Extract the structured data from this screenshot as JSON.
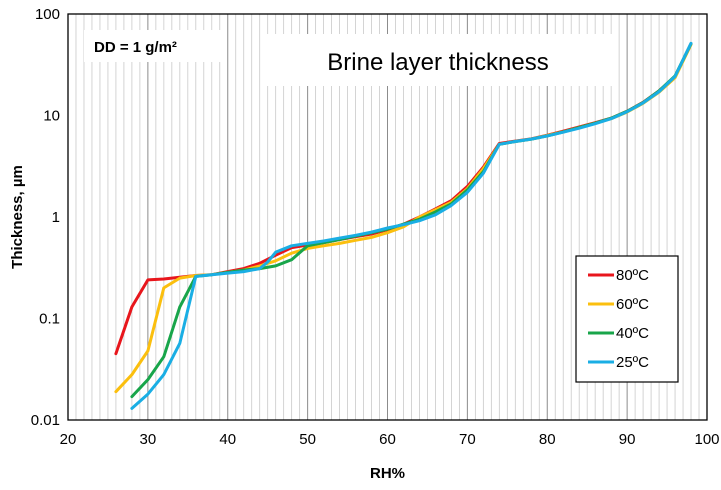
{
  "chart_data": {
    "type": "line",
    "title": "Brine layer thickness",
    "annotation": "DD = 1 g/m²",
    "xlabel": "RH%",
    "ylabel": "Thickness, µm",
    "xlim": [
      20,
      100
    ],
    "ylim": [
      0.01,
      100
    ],
    "yscale": "log",
    "x_ticks": [
      "20",
      "30",
      "40",
      "50",
      "60",
      "70",
      "80",
      "90",
      "100"
    ],
    "y_ticks": [
      "0.01",
      "0.1",
      "1",
      "10",
      "100"
    ],
    "grid": "vertical",
    "legend_position": "right",
    "series": [
      {
        "name": "80ºC",
        "color": "#e8161c",
        "x": [
          26,
          28,
          30,
          32,
          34,
          36,
          38,
          40,
          42,
          44,
          46,
          48,
          50,
          52,
          54,
          56,
          58,
          60,
          62,
          64,
          66,
          68,
          70,
          72,
          74,
          76,
          78,
          80,
          82,
          84,
          86,
          88,
          90,
          92,
          94,
          96,
          98
        ],
        "y": [
          0.045,
          0.13,
          0.24,
          0.245,
          0.255,
          0.265,
          0.27,
          0.29,
          0.31,
          0.35,
          0.42,
          0.5,
          0.53,
          0.56,
          0.6,
          0.64,
          0.68,
          0.75,
          0.85,
          1.0,
          1.2,
          1.45,
          2.0,
          3.1,
          5.3,
          5.6,
          5.9,
          6.4,
          7.0,
          7.7,
          8.5,
          9.4,
          11.0,
          13.5,
          17.5,
          24,
          51
        ]
      },
      {
        "name": "60ºC",
        "color": "#fbbf0e",
        "x": [
          26,
          28,
          30,
          32,
          34,
          36,
          38,
          40,
          42,
          44,
          46,
          48,
          50,
          52,
          54,
          56,
          58,
          60,
          62,
          64,
          66,
          68,
          70,
          72,
          74,
          76,
          78,
          80,
          82,
          84,
          86,
          88,
          90,
          92,
          94,
          96,
          98
        ],
        "y": [
          0.019,
          0.028,
          0.048,
          0.2,
          0.25,
          0.265,
          0.27,
          0.285,
          0.3,
          0.33,
          0.37,
          0.44,
          0.49,
          0.52,
          0.55,
          0.59,
          0.63,
          0.7,
          0.8,
          1.0,
          1.18,
          1.4,
          1.9,
          3.0,
          5.2,
          5.55,
          5.85,
          6.35,
          6.9,
          7.6,
          8.4,
          9.3,
          10.8,
          13.2,
          17.0,
          23.5,
          50
        ]
      },
      {
        "name": "40ºC",
        "color": "#18a54a",
        "x": [
          28,
          30,
          32,
          34,
          36,
          38,
          40,
          42,
          44,
          46,
          48,
          50,
          52,
          54,
          56,
          58,
          60,
          62,
          64,
          66,
          68,
          70,
          72,
          74,
          76,
          78,
          80,
          82,
          84,
          86,
          88,
          90,
          92,
          94,
          96,
          98
        ],
        "y": [
          0.017,
          0.025,
          0.042,
          0.13,
          0.26,
          0.27,
          0.285,
          0.3,
          0.31,
          0.33,
          0.38,
          0.52,
          0.56,
          0.6,
          0.65,
          0.7,
          0.76,
          0.85,
          0.95,
          1.12,
          1.35,
          1.85,
          2.8,
          5.2,
          5.55,
          5.85,
          6.3,
          6.9,
          7.6,
          8.4,
          9.4,
          11.0,
          13.4,
          17.5,
          24.5,
          51
        ]
      },
      {
        "name": "25ºC",
        "color": "#1aaee4",
        "x": [
          28,
          30,
          32,
          34,
          36,
          38,
          40,
          42,
          44,
          45,
          46,
          48,
          50,
          52,
          54,
          56,
          58,
          60,
          62,
          64,
          66,
          68,
          70,
          72,
          74,
          76,
          78,
          80,
          82,
          84,
          86,
          88,
          90,
          92,
          94,
          96,
          98
        ],
        "y": [
          0.013,
          0.018,
          0.028,
          0.057,
          0.26,
          0.27,
          0.28,
          0.29,
          0.31,
          0.36,
          0.45,
          0.52,
          0.55,
          0.58,
          0.62,
          0.66,
          0.71,
          0.78,
          0.84,
          0.92,
          1.05,
          1.3,
          1.75,
          2.7,
          5.2,
          5.55,
          5.85,
          6.3,
          6.85,
          7.5,
          8.3,
          9.3,
          10.9,
          13.3,
          17.2,
          24.2,
          51.5
        ]
      }
    ]
  }
}
